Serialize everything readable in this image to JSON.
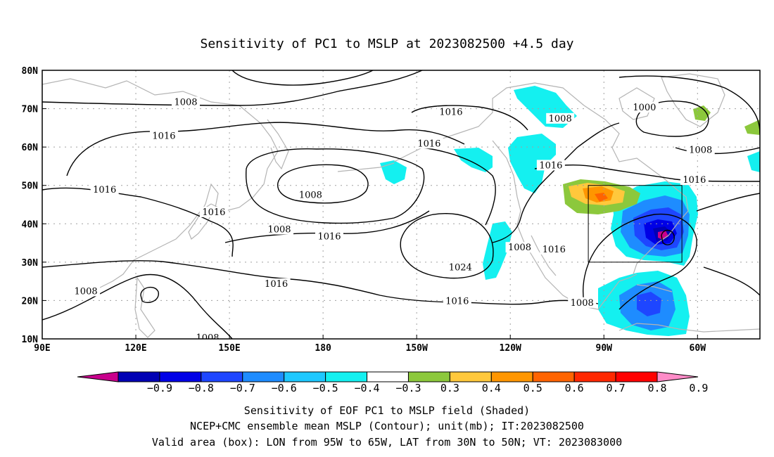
{
  "title": "Sensitivity of PC1 to MSLP at 2023082500 +4.5 day",
  "map": {
    "lon_labels": [
      "90E",
      "120E",
      "150E",
      "180",
      "150W",
      "120W",
      "90W",
      "60W"
    ],
    "lat_labels": [
      "10N",
      "20N",
      "30N",
      "40N",
      "50N",
      "60N",
      "70N",
      "80N"
    ],
    "contour_labels": [
      {
        "text": "1008",
        "lon": 136,
        "lat": 71.5
      },
      {
        "text": "1016",
        "lon": 129,
        "lat": 62.7
      },
      {
        "text": "1016",
        "lon": 110,
        "lat": 48.7
      },
      {
        "text": "1016",
        "lon": 145,
        "lat": 42.8
      },
      {
        "text": "1008",
        "lon": 176,
        "lat": 47.3
      },
      {
        "text": "1008",
        "lon": 166,
        "lat": 38.3
      },
      {
        "text": "1016",
        "lon": 182,
        "lat": 36.5
      },
      {
        "text": "1016",
        "lon": 165,
        "lat": 24.1
      },
      {
        "text": "1008",
        "lon": 104,
        "lat": 22.2
      },
      {
        "text": "1008",
        "lon": 143,
        "lat": 10.1
      },
      {
        "text": "1016",
        "lon": 221,
        "lat": 68.9
      },
      {
        "text": "1016",
        "lon": 214,
        "lat": 60.7
      },
      {
        "text": "1024",
        "lon": 224,
        "lat": 28.4
      },
      {
        "text": "1016",
        "lon": 223,
        "lat": 19.6
      },
      {
        "text": "1008",
        "lon": 243,
        "lat": 33.6
      },
      {
        "text": "1016",
        "lon": 254,
        "lat": 33.1
      },
      {
        "text": "1016",
        "lon": 253,
        "lat": 55.0
      },
      {
        "text": "1008",
        "lon": 256,
        "lat": 67.2
      },
      {
        "text": "1008",
        "lon": 263,
        "lat": 19.2
      },
      {
        "text": "1000",
        "lon": 283,
        "lat": 70.1
      },
      {
        "text": "1008",
        "lon": 301,
        "lat": 59.0
      },
      {
        "text": "1016",
        "lon": 299,
        "lat": 51.2
      }
    ],
    "valid_box": {
      "lon_west": -95,
      "lon_east": -65,
      "lat_south": 30,
      "lat_north": 50
    }
  },
  "colorbar": {
    "labels": [
      "−0.9",
      "−0.8",
      "−0.7",
      "−0.6",
      "−0.5",
      "−0.4",
      "−0.3",
      "0.3",
      "0.4",
      "0.5",
      "0.6",
      "0.7",
      "0.8",
      "0.9"
    ],
    "colors": [
      "#c8008c",
      "#0000b4",
      "#0000e6",
      "#1e46ff",
      "#1e8cff",
      "#1ec8ff",
      "#14f0f0",
      "#ffffff",
      "#8cc83c",
      "#ffc83c",
      "#ff9600",
      "#ff6400",
      "#ff2800",
      "#ff0000",
      "#ff8cc8"
    ]
  },
  "caption": {
    "line1": "Sensitivity of EOF PC1 to MSLP field (Shaded)",
    "line2": "NCEP+CMC ensemble mean MSLP (Contour); unit(mb); IT:2023082500",
    "line3": "Valid area (box): LON from 95W to 65W, LAT from 30N to 50N; VT: 2023083000"
  }
}
